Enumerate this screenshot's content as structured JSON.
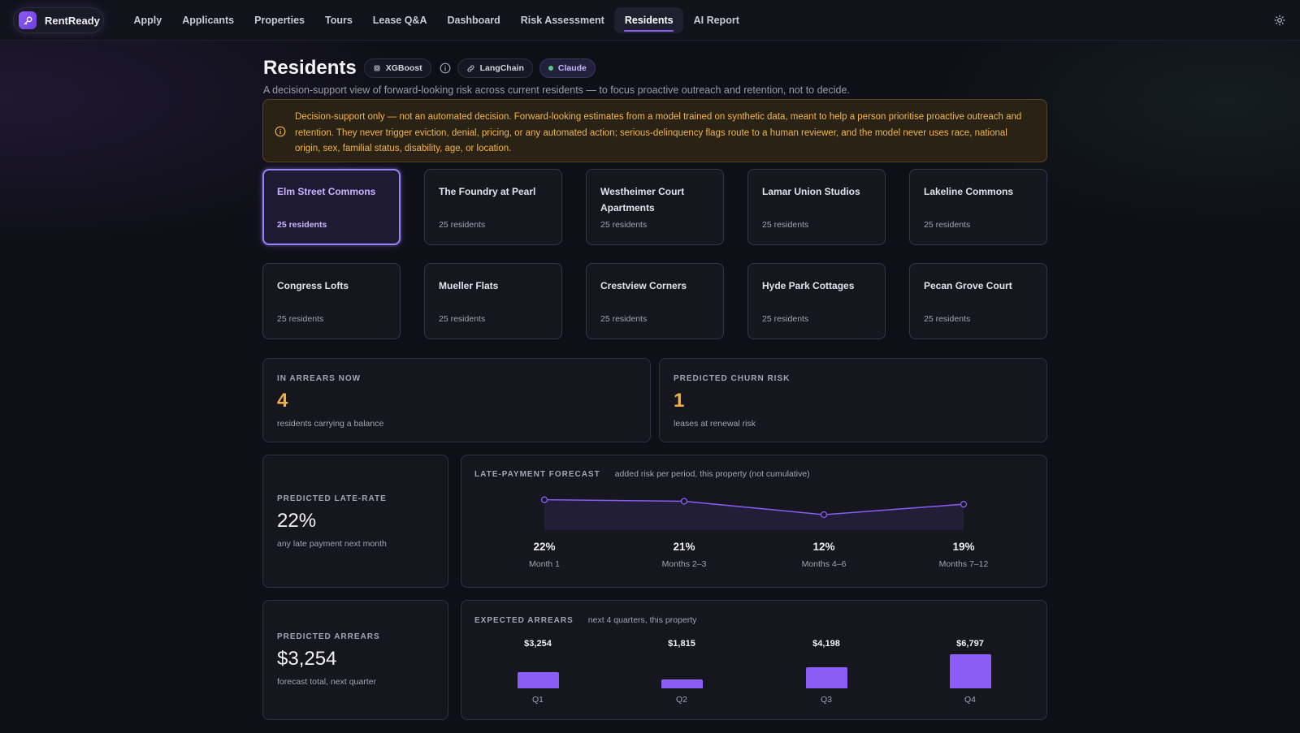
{
  "nav": {
    "brand": "RentReady",
    "items": [
      {
        "label": "Apply",
        "name": "nav-apply"
      },
      {
        "label": "Applicants",
        "name": "nav-applicants"
      },
      {
        "label": "Properties",
        "name": "nav-properties"
      },
      {
        "label": "Tours",
        "name": "nav-tours"
      },
      {
        "label": "Lease Q&A",
        "name": "nav-lease-qa"
      },
      {
        "label": "Dashboard",
        "name": "nav-dashboard"
      },
      {
        "label": "Risk Assessment",
        "name": "nav-risk-assessment"
      },
      {
        "label": "Residents",
        "name": "nav-residents",
        "active": true
      },
      {
        "label": "AI Report",
        "name": "nav-ai-report"
      }
    ],
    "theme_icon": "sun-icon"
  },
  "header": {
    "title": "Residents",
    "badges": {
      "xgboost": "XGBoost",
      "langchain": "LangChain",
      "claude": "Claude"
    },
    "subtitle": "A decision-support view of forward-looking risk across current residents — to focus proactive outreach and retention, not to decide."
  },
  "notice": {
    "text": "Decision-support only — not an automated decision. Forward-looking estimates from a model trained on synthetic data, meant to help a person prioritise proactive outreach and retention. They never trigger eviction, denial, pricing, or any automated action; serious-delinquency flags route to a human reviewer, and the model never uses race, national origin, sex, familial status, disability, age, or location."
  },
  "properties": [
    {
      "name": "Elm Street Commons",
      "count": "25 residents",
      "active": true
    },
    {
      "name": "The Foundry at Pearl",
      "count": "25 residents"
    },
    {
      "name": "Westheimer Court Apartments",
      "count": "25 residents"
    },
    {
      "name": "Lamar Union Studios",
      "count": "25 residents"
    },
    {
      "name": "Lakeline Commons",
      "count": "25 residents"
    },
    {
      "name": "Congress Lofts",
      "count": "25 residents"
    },
    {
      "name": "Mueller Flats",
      "count": "25 residents"
    },
    {
      "name": "Crestview Corners",
      "count": "25 residents"
    },
    {
      "name": "Hyde Park Cottages",
      "count": "25 residents"
    },
    {
      "name": "Pecan Grove Court",
      "count": "25 residents"
    }
  ],
  "stats": {
    "arrears_now": {
      "label": "IN ARREARS NOW",
      "value": "4",
      "sub": "residents carrying a balance"
    },
    "churn": {
      "label": "PREDICTED CHURN RISK",
      "value": "1",
      "sub": "leases at renewal risk"
    },
    "late_rate": {
      "label": "PREDICTED LATE-RATE",
      "value": "22%",
      "sub": "any late payment next month"
    },
    "pred_arrears": {
      "label": "PREDICTED ARREARS",
      "value": "$3,254",
      "sub": "forecast total, next quarter"
    }
  },
  "late_forecast": {
    "label": "LATE-PAYMENT FORECAST",
    "note": "added risk per period, this property (not cumulative)",
    "points": [
      {
        "value": "22%",
        "label": "Month 1"
      },
      {
        "value": "21%",
        "label": "Months 2–3"
      },
      {
        "value": "12%",
        "label": "Months 4–6"
      },
      {
        "value": "19%",
        "label": "Months 7–12"
      }
    ]
  },
  "expected_arrears": {
    "label": "EXPECTED ARREARS",
    "note": "next 4 quarters, this property",
    "bars": [
      {
        "value": "$3,254",
        "label": "Q1"
      },
      {
        "value": "$1,815",
        "label": "Q2"
      },
      {
        "value": "$4,198",
        "label": "Q3"
      },
      {
        "value": "$6,797",
        "label": "Q4"
      }
    ]
  },
  "chart_data": [
    {
      "type": "area",
      "title": "LATE-PAYMENT FORECAST",
      "categories": [
        "Month 1",
        "Months 2–3",
        "Months 4–6",
        "Months 7–12"
      ],
      "values": [
        22,
        21,
        12,
        19
      ],
      "color": "#8b5cf6"
    },
    {
      "type": "bar",
      "title": "EXPECTED ARREARS",
      "categories": [
        "Q1",
        "Q2",
        "Q3",
        "Q4"
      ],
      "values": [
        3254,
        1815,
        4198,
        6797
      ],
      "color": "#8b5cf6"
    }
  ]
}
